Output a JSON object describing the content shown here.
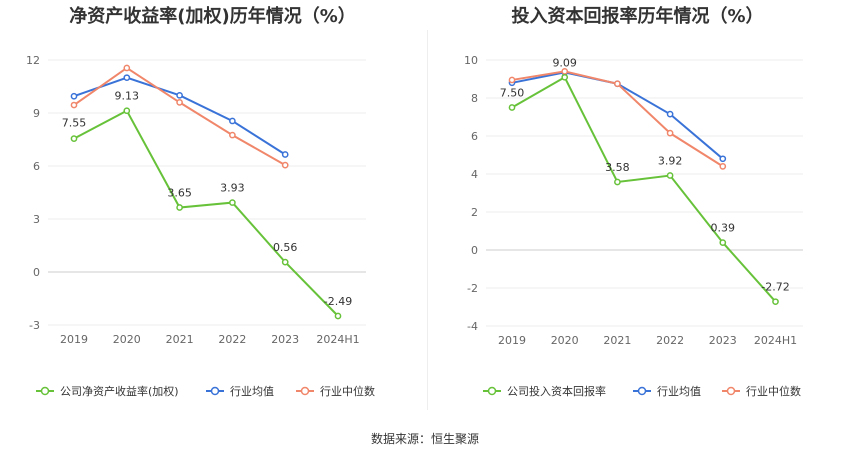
{
  "source_text": "数据来源：恒生聚源",
  "colors": {
    "company": "#67c23a",
    "avg": "#3a73d8",
    "median": "#f0866a"
  },
  "chart_data": [
    {
      "type": "line",
      "title": "净资产收益率(加权)历年情况（%）",
      "categories": [
        "2019",
        "2020",
        "2021",
        "2022",
        "2023",
        "2024H1"
      ],
      "ylim": [
        -3,
        12
      ],
      "yticks": [
        -3,
        0,
        3,
        6,
        9,
        12
      ],
      "legend_position": "bottom",
      "series": [
        {
          "name": "公司净资产收益率(加权)",
          "key": "company",
          "values": [
            7.55,
            9.13,
            3.65,
            3.93,
            0.56,
            -2.49
          ],
          "labels": [
            "7.55",
            "9.13",
            "3.65",
            "3.93",
            "0.56",
            "-2.49"
          ]
        },
        {
          "name": "行业均值",
          "key": "avg",
          "values": [
            9.95,
            11.0,
            10.0,
            8.55,
            6.65,
            null
          ]
        },
        {
          "name": "行业中位数",
          "key": "median",
          "values": [
            9.45,
            11.55,
            9.6,
            7.75,
            6.05,
            null
          ]
        }
      ]
    },
    {
      "type": "line",
      "title": "投入资本回报率历年情况（%）",
      "categories": [
        "2019",
        "2020",
        "2021",
        "2022",
        "2023",
        "2024H1"
      ],
      "ylim": [
        -4,
        10
      ],
      "yticks": [
        -4,
        -2,
        0,
        2,
        4,
        6,
        8,
        10
      ],
      "legend_position": "bottom",
      "series": [
        {
          "name": "公司投入资本回报率",
          "key": "company",
          "values": [
            7.5,
            9.09,
            3.58,
            3.92,
            0.39,
            -2.72
          ],
          "labels": [
            "7.50",
            "9.09",
            "3.58",
            "3.92",
            "0.39",
            "-2.72"
          ]
        },
        {
          "name": "行业均值",
          "key": "avg",
          "values": [
            8.8,
            9.35,
            8.75,
            7.15,
            4.8,
            null
          ]
        },
        {
          "name": "行业中位数",
          "key": "median",
          "values": [
            8.95,
            9.4,
            8.75,
            6.15,
            4.4,
            null
          ]
        }
      ]
    }
  ]
}
